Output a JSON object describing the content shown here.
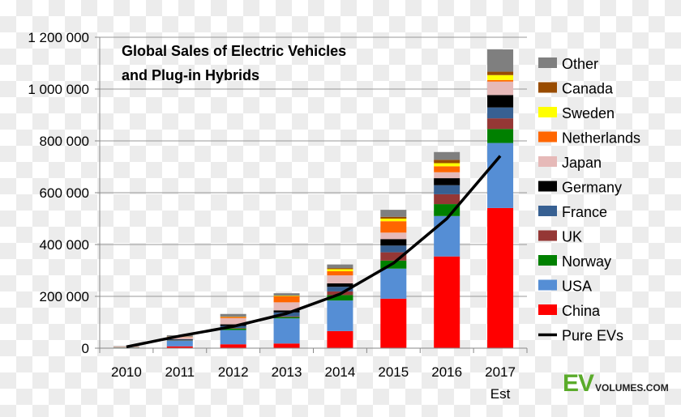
{
  "chart_data": {
    "type": "bar",
    "stacked": true,
    "title_lines": [
      "Global Sales of Electric Vehicles",
      "and Plug-in Hybrids"
    ],
    "xlabel": "",
    "ylabel": "",
    "categories": [
      "2010",
      "2011",
      "2012",
      "2013",
      "2014",
      "2015",
      "2016",
      "2017"
    ],
    "category_sublabels": [
      "",
      "",
      "",
      "",
      "",
      "",
      "",
      "Est"
    ],
    "ylim": [
      0,
      1200000
    ],
    "yticks": [
      0,
      200000,
      400000,
      600000,
      800000,
      1000000,
      1200000
    ],
    "ytick_labels": [
      "0",
      "200 000",
      "400 000",
      "600 000",
      "800 000",
      "1 000 000",
      "1 200 000"
    ],
    "grid": true,
    "legend_position": "right",
    "series": [
      {
        "name": "China",
        "color": "#ff0000",
        "values": [
          1000,
          7000,
          15000,
          18000,
          66000,
          191000,
          354000,
          541000
        ]
      },
      {
        "name": "USA",
        "color": "#558ed5",
        "values": [
          1000,
          21000,
          55000,
          97000,
          118000,
          116000,
          156000,
          251000
        ]
      },
      {
        "name": "Norway",
        "color": "#008000",
        "values": [
          500,
          1000,
          6000,
          5000,
          21000,
          31000,
          46000,
          54000
        ]
      },
      {
        "name": "UK",
        "color": "#953735",
        "values": [
          300,
          1000,
          2000,
          3000,
          14000,
          32000,
          38000,
          41000
        ]
      },
      {
        "name": "France",
        "color": "#376092",
        "values": [
          300,
          3000,
          8000,
          15000,
          18000,
          26000,
          35000,
          42000
        ]
      },
      {
        "name": "Germany",
        "color": "#000000",
        "values": [
          300,
          2000,
          6000,
          8000,
          13000,
          25000,
          27000,
          48000
        ]
      },
      {
        "name": "Japan",
        "color": "#e6b9b8",
        "values": [
          2500,
          8000,
          24000,
          31000,
          31000,
          25000,
          23000,
          52000
        ]
      },
      {
        "name": "Netherlands",
        "color": "#ff6600",
        "values": [
          200,
          1000,
          4000,
          23000,
          16000,
          44000,
          23000,
          6000
        ]
      },
      {
        "name": "Sweden",
        "color": "#ffff00",
        "values": [
          100,
          300,
          1000,
          2000,
          8000,
          10000,
          12000,
          19000
        ]
      },
      {
        "name": "Canada",
        "color": "#994c00",
        "values": [
          100,
          500,
          1000,
          1000,
          4000,
          7000,
          13000,
          13000
        ]
      },
      {
        "name": "Other",
        "color": "#7f7f7f",
        "values": [
          1500,
          5000,
          10000,
          9000,
          14000,
          27000,
          30000,
          86000
        ]
      }
    ],
    "line_series": {
      "name": "Pure EVs",
      "color": "#000000",
      "values": [
        5000,
        47000,
        84000,
        134000,
        209000,
        328000,
        500000,
        742000
      ]
    }
  },
  "logo": {
    "text_ev": "EV",
    "text_rest": "VOLUMES.COM"
  }
}
